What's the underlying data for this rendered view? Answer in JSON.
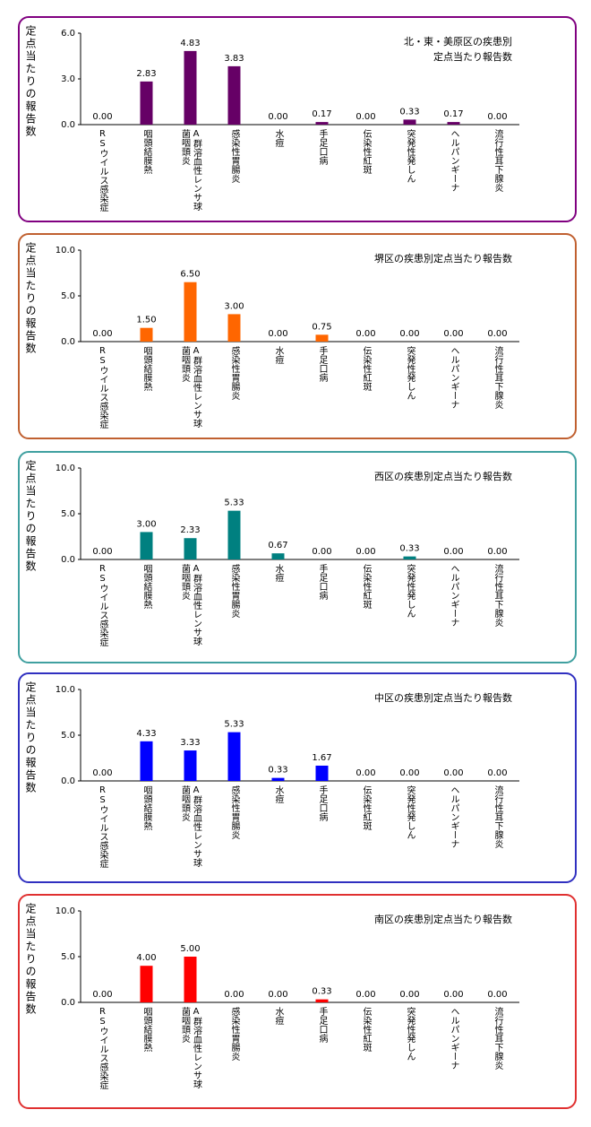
{
  "chart_data": [
    {
      "type": "bar",
      "title": "北・東・美原区の疾患別定点当たり報告数",
      "y_label": "定点当たりの報告数",
      "color": "#660066",
      "border": "#800080",
      "categories": [
        "RSウイルス感染症",
        "咽頭結膜熱",
        "A群溶血性レンサ球菌咽頭炎",
        "感染性胃腸炎",
        "水痘",
        "手足口病",
        "伝染性紅斑",
        "突発性発しん",
        "ヘルパンギーナ",
        "流行性耳下腺炎"
      ],
      "values": [
        0,
        2.83,
        4.83,
        3.83,
        0,
        0.17,
        0,
        0.33,
        0.17,
        0
      ],
      "value_labels": [
        "0.00",
        "2.83",
        "4.83",
        "3.83",
        "0.00",
        "0.17",
        "0.00",
        "0.33",
        "0.17",
        "0.00"
      ],
      "ylim": [
        0,
        6
      ],
      "yticks": [
        {
          "value": 0,
          "label": "0.0"
        },
        {
          "value": 3,
          "label": "3.0"
        },
        {
          "value": 6,
          "label": "6.0"
        }
      ]
    },
    {
      "type": "bar",
      "title": "堺区の疾患別定点当たり報告数",
      "y_label": "定点当たりの報告数",
      "color": "#ff6600",
      "border": "#c06030",
      "categories": [
        "RSウイルス感染症",
        "咽頭結膜熱",
        "A群溶血性レンサ球菌咽頭炎",
        "感染性胃腸炎",
        "水痘",
        "手足口病",
        "伝染性紅斑",
        "突発性発しん",
        "ヘルパンギーナ",
        "流行性耳下腺炎"
      ],
      "values": [
        0,
        1.5,
        6.5,
        3,
        0,
        0.75,
        0,
        0,
        0,
        0
      ],
      "value_labels": [
        "0.00",
        "1.50",
        "6.50",
        "3.00",
        "0.00",
        "0.75",
        "0.00",
        "0.00",
        "0.00",
        "0.00"
      ],
      "ylim": [
        0,
        10
      ],
      "yticks": [
        {
          "value": 0,
          "label": "0.0"
        },
        {
          "value": 5,
          "label": "5.0"
        },
        {
          "value": 10,
          "label": "10.0"
        }
      ]
    },
    {
      "type": "bar",
      "title": "西区の疾患別定点当たり報告数",
      "y_label": "定点当たりの報告数",
      "color": "#008080",
      "border": "#40a0a0",
      "categories": [
        "RSウイルス感染症",
        "咽頭結膜熱",
        "A群溶血性レンサ球菌咽頭炎",
        "感染性胃腸炎",
        "水痘",
        "手足口病",
        "伝染性紅斑",
        "突発性発しん",
        "ヘルパンギーナ",
        "流行性耳下腺炎"
      ],
      "values": [
        0,
        3,
        2.33,
        5.33,
        0.67,
        0,
        0,
        0.33,
        0,
        0
      ],
      "value_labels": [
        "0.00",
        "3.00",
        "2.33",
        "5.33",
        "0.67",
        "0.00",
        "0.00",
        "0.33",
        "0.00",
        "0.00"
      ],
      "ylim": [
        0,
        10
      ],
      "yticks": [
        {
          "value": 0,
          "label": "0.0"
        },
        {
          "value": 5,
          "label": "5.0"
        },
        {
          "value": 10,
          "label": "10.0"
        }
      ]
    },
    {
      "type": "bar",
      "title": "中区の疾患別定点当たり報告数",
      "y_label": "定点当たりの報告数",
      "color": "#0000ff",
      "border": "#3030c0",
      "categories": [
        "RSウイルス感染症",
        "咽頭結膜熱",
        "A群溶血性レンサ球菌咽頭炎",
        "感染性胃腸炎",
        "水痘",
        "手足口病",
        "伝染性紅斑",
        "突発性発しん",
        "ヘルパンギーナ",
        "流行性耳下腺炎"
      ],
      "values": [
        0,
        4.33,
        3.33,
        5.33,
        0.33,
        1.67,
        0,
        0,
        0,
        0
      ],
      "value_labels": [
        "0.00",
        "4.33",
        "3.33",
        "5.33",
        "0.33",
        "1.67",
        "0.00",
        "0.00",
        "0.00",
        "0.00"
      ],
      "ylim": [
        0,
        10
      ],
      "yticks": [
        {
          "value": 0,
          "label": "0.0"
        },
        {
          "value": 5,
          "label": "5.0"
        },
        {
          "value": 10,
          "label": "10.0"
        }
      ]
    },
    {
      "type": "bar",
      "title": "南区の疾患別定点当たり報告数",
      "y_label": "定点当たりの報告数",
      "color": "#ff0000",
      "border": "#e03030",
      "categories": [
        "RSウイルス感染症",
        "咽頭結膜熱",
        "A群溶血性レンサ球菌咽頭炎",
        "感染性胃腸炎",
        "水痘",
        "手足口病",
        "伝染性紅斑",
        "突発性発しん",
        "ヘルパンギーナ",
        "流行性耳下腺炎"
      ],
      "values": [
        0,
        4,
        5,
        0,
        0,
        0.33,
        0,
        0,
        0,
        0
      ],
      "value_labels": [
        "0.00",
        "4.00",
        "5.00",
        "0.00",
        "0.00",
        "0.33",
        "0.00",
        "0.00",
        "0.00",
        "0.00"
      ],
      "ylim": [
        0,
        10
      ],
      "yticks": [
        {
          "value": 0,
          "label": "0.0"
        },
        {
          "value": 5,
          "label": "5.0"
        },
        {
          "value": 10,
          "label": "10.0"
        }
      ]
    }
  ]
}
